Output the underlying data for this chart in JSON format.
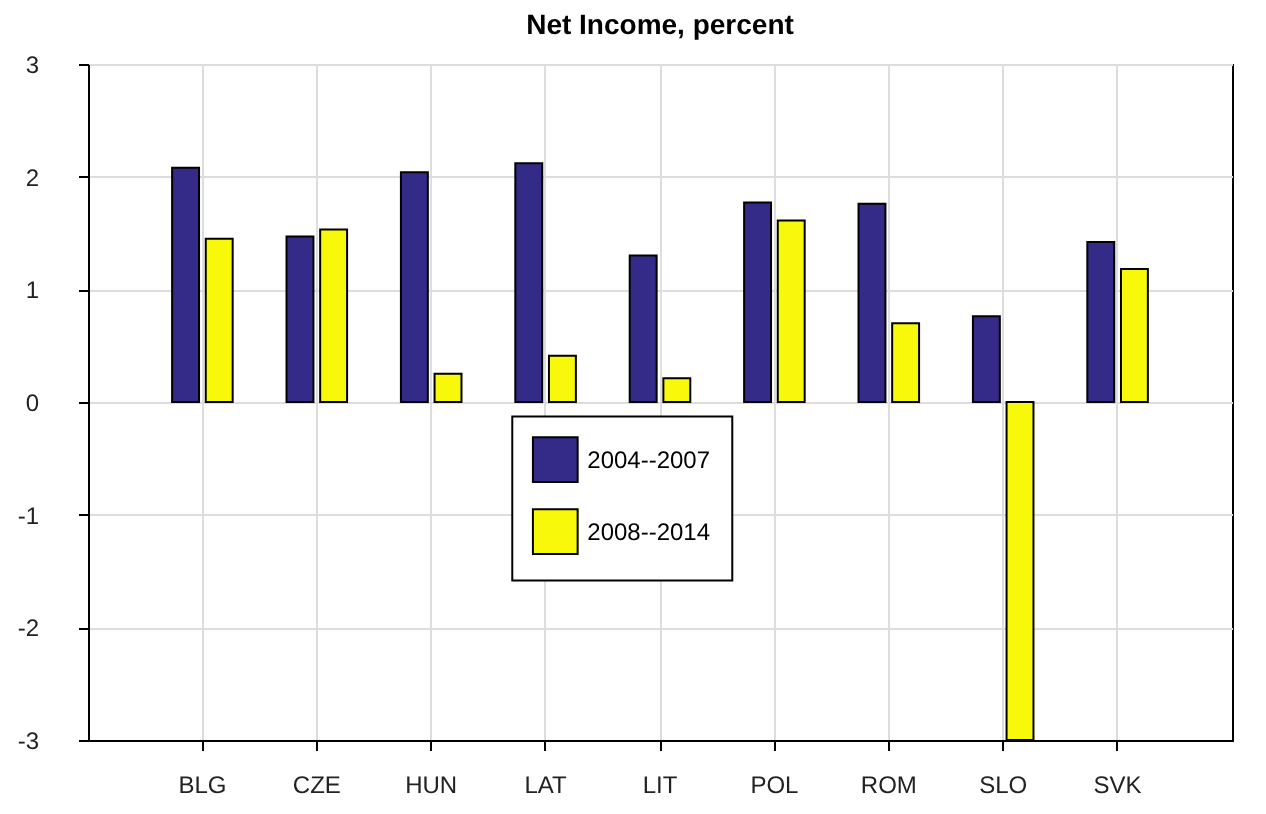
{
  "chart_data": {
    "type": "bar",
    "title": "Net Income, percent",
    "categories": [
      "BLG",
      "CZE",
      "HUN",
      "LAT",
      "LIT",
      "POL",
      "ROM",
      "SLO",
      "SVK"
    ],
    "series": [
      {
        "name": "2004--2007",
        "color": "#342a87",
        "values": [
          2.08,
          1.47,
          2.04,
          2.12,
          1.3,
          1.77,
          1.76,
          0.76,
          1.42
        ]
      },
      {
        "name": "2008--2014",
        "color": "#f8f80a",
        "values": [
          1.45,
          1.53,
          0.25,
          0.41,
          0.21,
          1.61,
          0.7,
          -3,
          1.18
        ]
      }
    ],
    "ylim": [
      -3,
      3
    ],
    "yticks": [
      -3,
      -2,
      -1,
      0,
      1,
      2,
      3
    ],
    "grid": true,
    "legend": "center"
  }
}
